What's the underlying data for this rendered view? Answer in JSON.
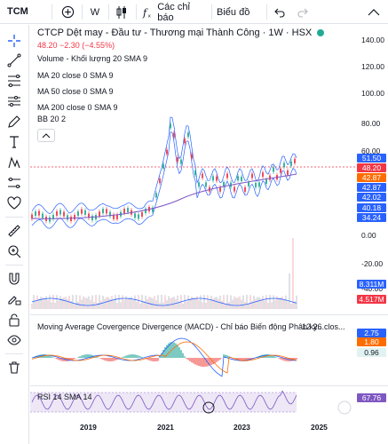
{
  "toolbar": {
    "symbol": "TCM",
    "interval": "W",
    "indicators_label": "Các chỉ báo",
    "chart_type_label": "Biểu đồ"
  },
  "legend": {
    "title": "CTCP Dệt may - Đầu tư - Thương mại Thành Công · 1W · HSX",
    "change": "48.20  −2.30 (−4.55%)",
    "indicators": [
      "Volume - Khối lượng 20 SMA 9",
      "MA 20 close 0 SMA 9",
      "MA 50 close 0 SMA 9",
      "MA 200 close 0 SMA 9",
      "BB 20 2"
    ]
  },
  "price_axis": {
    "ticks": [
      "140.00",
      "120.00",
      "100.00",
      "80.00",
      "60.00",
      "0.00",
      "-20.00",
      "-40.00"
    ],
    "tags": [
      {
        "text": "51.50",
        "color": "#2962ff"
      },
      {
        "text": "48.20",
        "color": "#f23645"
      },
      {
        "text": "42.87",
        "color": "#ff6d00"
      },
      {
        "text": "42.87",
        "color": "#2962ff"
      },
      {
        "text": "42.02",
        "color": "#2962ff"
      },
      {
        "text": "40.18",
        "color": "#2962ff"
      },
      {
        "text": "34.24",
        "color": "#2962ff"
      },
      {
        "text": "8.311M",
        "color": "#2962ff"
      },
      {
        "text": "4.517M",
        "color": "#f23645"
      },
      {
        "text": "2.75",
        "color": "#2962ff"
      },
      {
        "text": "1.80",
        "color": "#ff6d00"
      },
      {
        "text": "0.96",
        "color": "#e0f2f1"
      },
      {
        "text": "67.76",
        "color": "#7e57c2"
      }
    ]
  },
  "macd": {
    "label": "Moving Average Covergence Divergence (MACD) - Chỉ báo Biến động Phân kỳ...",
    "params": "12 26 clos..."
  },
  "rsi": {
    "label": "RSI 14 SMA 14"
  },
  "time_axis": {
    "labels": [
      "2019",
      "2021",
      "2023",
      "2025"
    ]
  },
  "colors": {
    "up": "#22ab94",
    "down": "#f23645",
    "bb": "#2962ff",
    "ma200": "#7e57c2",
    "rsi": "#7e57c2"
  }
}
